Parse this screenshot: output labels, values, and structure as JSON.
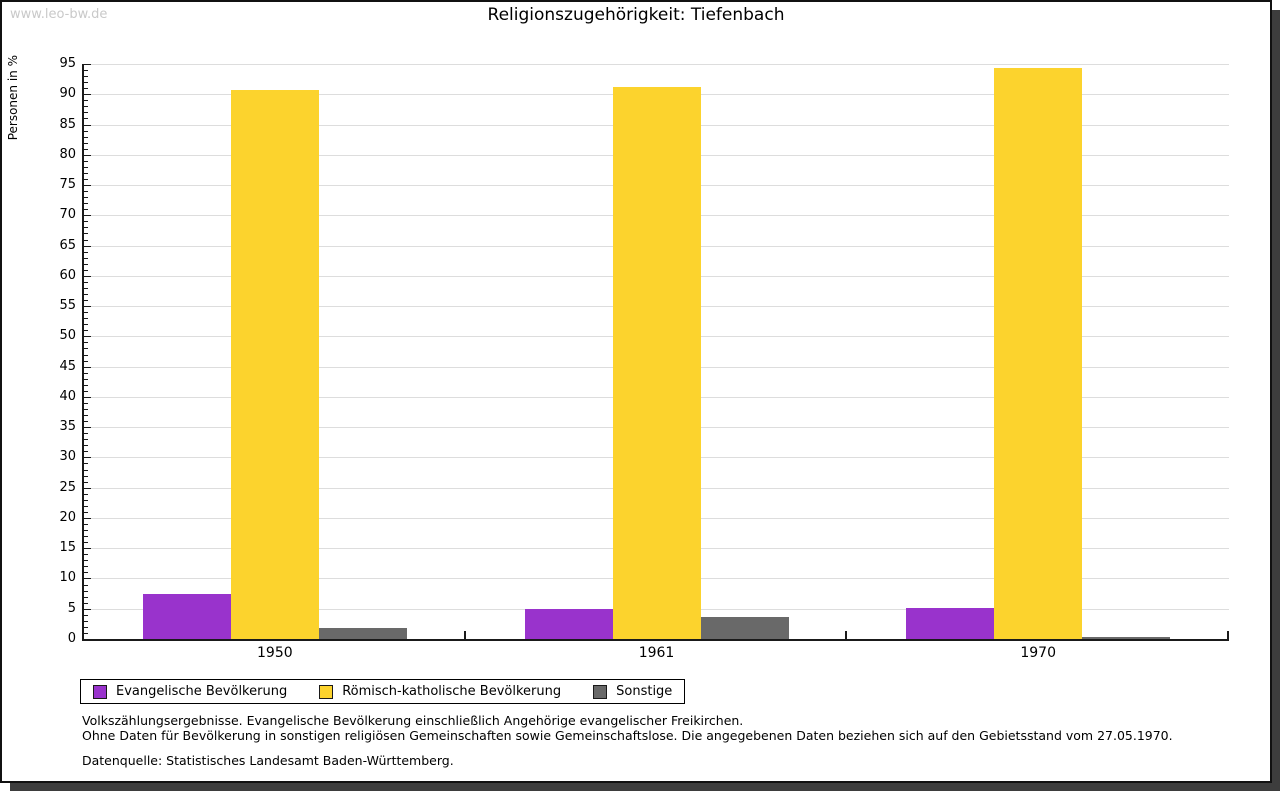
{
  "watermark": "www.leo-bw.de",
  "title": "Religionszugehörigkeit: Tiefenbach",
  "chart_data": {
    "type": "bar",
    "title": "Religionszugehörigkeit: Tiefenbach",
    "xlabel": "",
    "ylabel": "Personen in %",
    "ylim": [
      0,
      95
    ],
    "ytick_step": 5,
    "ytick_minor_step": 1,
    "grid": true,
    "legend_position": "bottom-left",
    "categories": [
      "1950",
      "1961",
      "1970"
    ],
    "series": [
      {
        "name": "Evangelische Bevölkerung",
        "color": "#9933cc",
        "values": [
          7.4,
          4.9,
          5.2
        ]
      },
      {
        "name": "Römisch-katholische Bevölkerung",
        "color": "#fcd32d",
        "values": [
          90.7,
          91.2,
          94.4
        ]
      },
      {
        "name": "Sonstige",
        "color": "#696969",
        "values": [
          1.9,
          3.6,
          0.4
        ]
      }
    ]
  },
  "footnotes": {
    "line1": "Volkszählungsergebnisse. Evangelische Bevölkerung einschließlich Angehörige evangelischer Freikirchen.",
    "line2": "Ohne Daten für Bevölkerung in sonstigen religiösen Gemeinschaften sowie Gemeinschaftslose. Die angegebenen Daten beziehen sich auf den Gebietsstand vom 27.05.1970.",
    "source": "Datenquelle: Statistisches Landesamt Baden-Württemberg."
  },
  "colors": {
    "grid": "#dddddd",
    "axis": "#1a1a1a",
    "watermark": "#c9c9c9",
    "shadow": "#3d3d3d"
  }
}
